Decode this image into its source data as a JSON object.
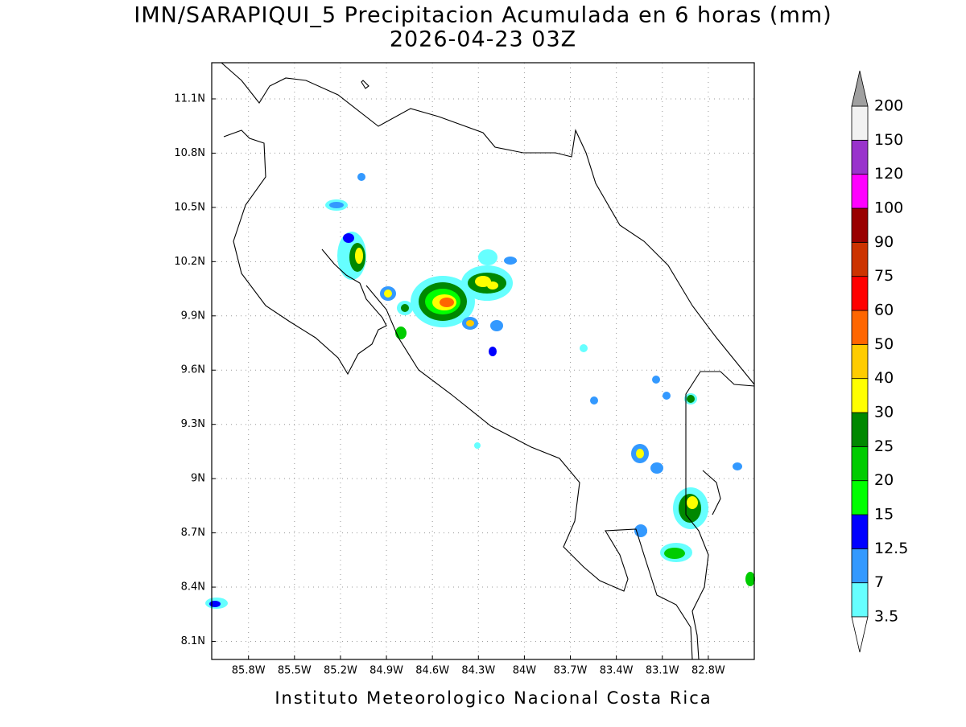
{
  "title": "IMN/SARAPIQUI_5 Precipitacion Acumulada en 6 horas (mm)",
  "subtitle": "2026-04-23 03Z",
  "footer": "Instituto Meteorologico Nacional Costa Rica",
  "map": {
    "xlim": [
      -86.04,
      -82.5
    ],
    "ylim": [
      8.0,
      11.3
    ],
    "grid": true,
    "xticks": [
      {
        "value": -85.8,
        "label": "85.8W"
      },
      {
        "value": -85.5,
        "label": "85.5W"
      },
      {
        "value": -85.2,
        "label": "85.2W"
      },
      {
        "value": -84.9,
        "label": "84.9W"
      },
      {
        "value": -84.6,
        "label": "84.6W"
      },
      {
        "value": -84.3,
        "label": "84.3W"
      },
      {
        "value": -84,
        "label": "84W"
      },
      {
        "value": -83.7,
        "label": "83.7W"
      },
      {
        "value": -83.4,
        "label": "83.4W"
      },
      {
        "value": -83.1,
        "label": "83.1W"
      },
      {
        "value": -82.8,
        "label": "82.8W"
      }
    ],
    "yticks": [
      {
        "value": 8.1,
        "label": "8.1N"
      },
      {
        "value": 8.4,
        "label": "8.4N"
      },
      {
        "value": 8.7,
        "label": "8.7N"
      },
      {
        "value": 9,
        "label": "9N"
      },
      {
        "value": 9.3,
        "label": "9.3N"
      },
      {
        "value": 9.6,
        "label": "9.6N"
      },
      {
        "value": 9.9,
        "label": "9.9N"
      },
      {
        "value": 10.2,
        "label": "10.2N"
      },
      {
        "value": 10.5,
        "label": "10.5N"
      },
      {
        "value": 10.8,
        "label": "10.8N"
      },
      {
        "value": 11.1,
        "label": "11.1N"
      }
    ]
  },
  "colorbar": {
    "levels": [
      3.5,
      7,
      12.5,
      15,
      20,
      25,
      30,
      40,
      50,
      60,
      75,
      90,
      100,
      120,
      150,
      200
    ],
    "colors": [
      "#66ffff",
      "#3399ff",
      "#0000ff",
      "#00ff00",
      "#00cc00",
      "#008800",
      "#ffff00",
      "#ffcc00",
      "#ff6600",
      "#ff0000",
      "#cc3300",
      "#990000",
      "#ff00ff",
      "#9933cc",
      "#f2f2f2"
    ],
    "under_color": "#ffffff",
    "over_color": "#a0a0a0"
  }
}
